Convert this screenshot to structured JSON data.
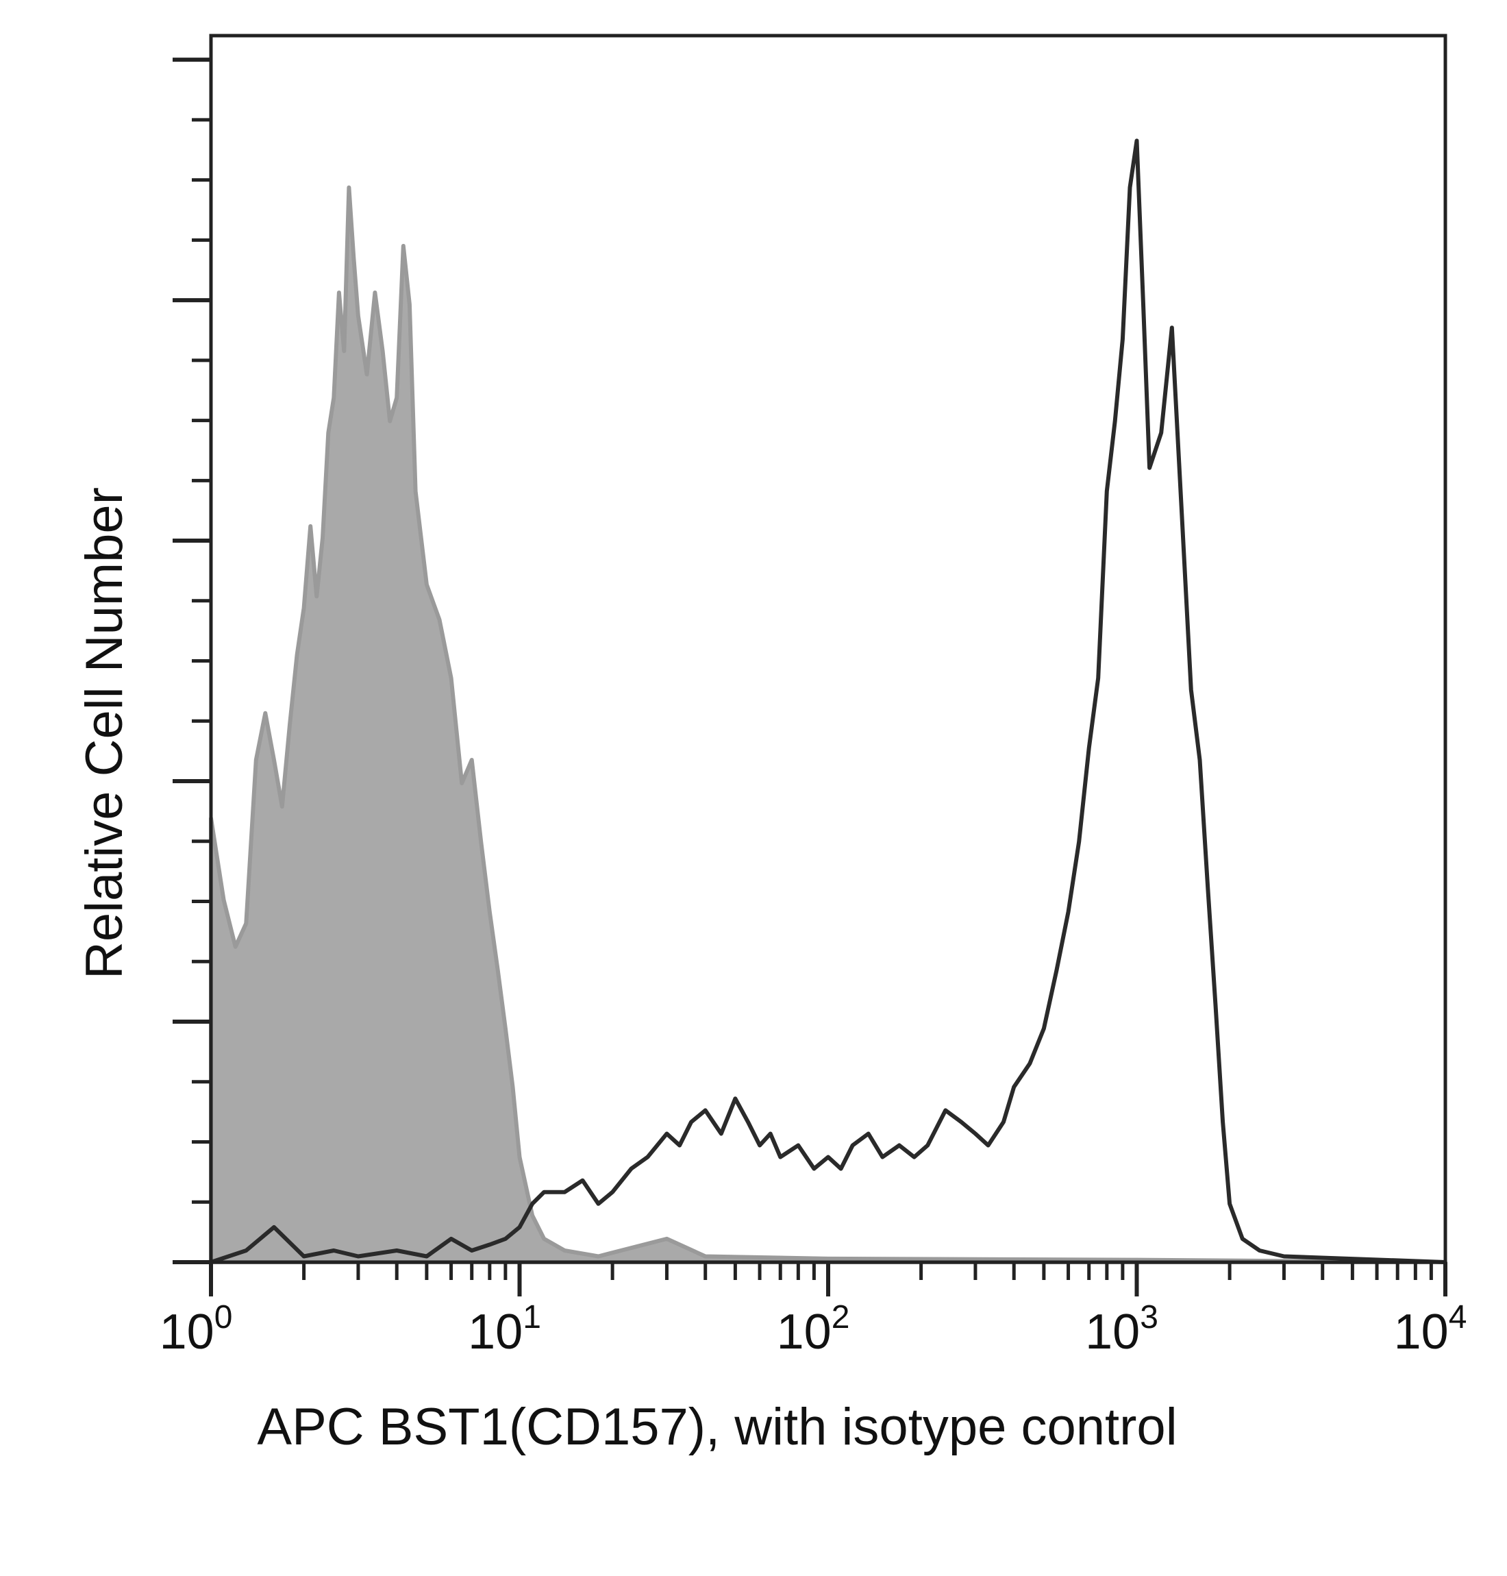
{
  "chart_data": {
    "type": "area",
    "title": "",
    "xlabel": "APC BST1(CD157), with isotype control",
    "ylabel": "Relative Cell Number",
    "x_scale": "log",
    "xlim": [
      1,
      10000
    ],
    "ylim": [
      0,
      1.05
    ],
    "grid": false,
    "legend": "none",
    "x_ticks": [
      {
        "base": "10",
        "exp": "0"
      },
      {
        "base": "10",
        "exp": "1"
      },
      {
        "base": "10",
        "exp": "2"
      },
      {
        "base": "10",
        "exp": "3"
      },
      {
        "base": "10",
        "exp": "4"
      }
    ],
    "series": [
      {
        "role": "isotype control",
        "style": "shaded",
        "color": "#9a9a9a",
        "points": [
          [
            1.0,
            0.38
          ],
          [
            1.1,
            0.31
          ],
          [
            1.2,
            0.27
          ],
          [
            1.3,
            0.29
          ],
          [
            1.4,
            0.43
          ],
          [
            1.5,
            0.47
          ],
          [
            1.6,
            0.43
          ],
          [
            1.7,
            0.39
          ],
          [
            1.8,
            0.46
          ],
          [
            1.9,
            0.52
          ],
          [
            2.0,
            0.56
          ],
          [
            2.1,
            0.63
          ],
          [
            2.2,
            0.57
          ],
          [
            2.3,
            0.62
          ],
          [
            2.4,
            0.71
          ],
          [
            2.5,
            0.74
          ],
          [
            2.6,
            0.83
          ],
          [
            2.7,
            0.78
          ],
          [
            2.8,
            0.92
          ],
          [
            2.9,
            0.86
          ],
          [
            3.0,
            0.81
          ],
          [
            3.2,
            0.76
          ],
          [
            3.4,
            0.83
          ],
          [
            3.6,
            0.78
          ],
          [
            3.8,
            0.72
          ],
          [
            4.0,
            0.74
          ],
          [
            4.2,
            0.87
          ],
          [
            4.4,
            0.82
          ],
          [
            4.6,
            0.66
          ],
          [
            5.0,
            0.58
          ],
          [
            5.5,
            0.55
          ],
          [
            6.0,
            0.5
          ],
          [
            6.5,
            0.41
          ],
          [
            7.0,
            0.43
          ],
          [
            7.5,
            0.36
          ],
          [
            8.0,
            0.3
          ],
          [
            8.5,
            0.25
          ],
          [
            9.0,
            0.2
          ],
          [
            9.5,
            0.15
          ],
          [
            10.0,
            0.09
          ],
          [
            11.0,
            0.04
          ],
          [
            12.0,
            0.02
          ],
          [
            14.0,
            0.01
          ],
          [
            18.0,
            0.005
          ],
          [
            30.0,
            0.02
          ],
          [
            40.0,
            0.005
          ],
          [
            100.0,
            0.003
          ],
          [
            1000.0,
            0.002
          ],
          [
            10000.0,
            0.0
          ]
        ]
      },
      {
        "role": "APC BST1(CD157)",
        "style": "line",
        "color": "#2a2a2a",
        "points": [
          [
            1.0,
            0.0
          ],
          [
            1.3,
            0.01
          ],
          [
            1.6,
            0.03
          ],
          [
            2.0,
            0.005
          ],
          [
            2.5,
            0.01
          ],
          [
            3.0,
            0.005
          ],
          [
            4.0,
            0.01
          ],
          [
            5.0,
            0.005
          ],
          [
            6.0,
            0.02
          ],
          [
            7.0,
            0.01
          ],
          [
            8.0,
            0.015
          ],
          [
            9.0,
            0.02
          ],
          [
            10.0,
            0.03
          ],
          [
            11.0,
            0.05
          ],
          [
            12.0,
            0.06
          ],
          [
            14.0,
            0.06
          ],
          [
            16.0,
            0.07
          ],
          [
            18.0,
            0.05
          ],
          [
            20.0,
            0.06
          ],
          [
            23.0,
            0.08
          ],
          [
            26.0,
            0.09
          ],
          [
            30.0,
            0.11
          ],
          [
            33.0,
            0.1
          ],
          [
            36.0,
            0.12
          ],
          [
            40.0,
            0.13
          ],
          [
            45.0,
            0.11
          ],
          [
            50.0,
            0.14
          ],
          [
            55.0,
            0.12
          ],
          [
            60.0,
            0.1
          ],
          [
            65.0,
            0.11
          ],
          [
            70.0,
            0.09
          ],
          [
            80.0,
            0.1
          ],
          [
            90.0,
            0.08
          ],
          [
            100.0,
            0.09
          ],
          [
            110.0,
            0.08
          ],
          [
            120.0,
            0.1
          ],
          [
            135.0,
            0.11
          ],
          [
            150.0,
            0.09
          ],
          [
            170.0,
            0.1
          ],
          [
            190.0,
            0.09
          ],
          [
            210.0,
            0.1
          ],
          [
            240.0,
            0.13
          ],
          [
            270.0,
            0.12
          ],
          [
            300.0,
            0.11
          ],
          [
            330.0,
            0.1
          ],
          [
            370.0,
            0.12
          ],
          [
            400.0,
            0.15
          ],
          [
            450.0,
            0.17
          ],
          [
            500.0,
            0.2
          ],
          [
            550.0,
            0.25
          ],
          [
            600.0,
            0.3
          ],
          [
            650.0,
            0.36
          ],
          [
            700.0,
            0.44
          ],
          [
            750.0,
            0.5
          ],
          [
            800.0,
            0.66
          ],
          [
            850.0,
            0.72
          ],
          [
            900.0,
            0.79
          ],
          [
            950.0,
            0.92
          ],
          [
            1000.0,
            0.96
          ],
          [
            1050.0,
            0.82
          ],
          [
            1100.0,
            0.68
          ],
          [
            1200.0,
            0.71
          ],
          [
            1300.0,
            0.8
          ],
          [
            1400.0,
            0.64
          ],
          [
            1500.0,
            0.49
          ],
          [
            1600.0,
            0.43
          ],
          [
            1700.0,
            0.32
          ],
          [
            1800.0,
            0.22
          ],
          [
            1900.0,
            0.12
          ],
          [
            2000.0,
            0.05
          ],
          [
            2200.0,
            0.02
          ],
          [
            2500.0,
            0.01
          ],
          [
            3000.0,
            0.005
          ],
          [
            10000.0,
            0.0
          ]
        ]
      }
    ]
  }
}
